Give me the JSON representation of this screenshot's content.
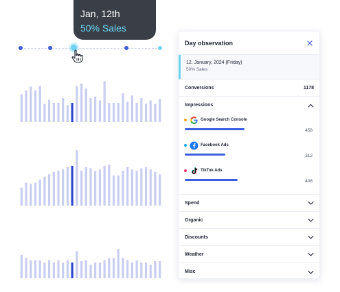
{
  "tooltip": {
    "date": "Jan, 12th",
    "subtitle": "50% Sales"
  },
  "colors": {
    "accent": "#3b5ee0",
    "bar": "#c9cdef",
    "bar_active": "#2f46c9",
    "highlight": "#6fd3f3",
    "tooltip_bg": "#3a3f47"
  },
  "charts": [
    {
      "values": [
        0.58,
        0.66,
        0.74,
        0.66,
        0.75,
        0.38,
        0.46,
        0.4,
        0.4,
        0.5,
        0.35,
        0.4,
        0.75,
        0.8,
        0.7,
        0.5,
        0.53,
        0.45,
        0.85,
        0.4,
        0.4,
        0.4,
        0.6,
        0.42,
        0.55,
        0.4,
        0.5,
        0.38,
        0.45,
        0.38,
        0.48
      ],
      "active_index": 11
    },
    {
      "values": [
        0.3,
        0.38,
        0.36,
        0.38,
        0.43,
        0.48,
        0.52,
        0.56,
        0.58,
        0.6,
        0.64,
        0.66,
        0.92,
        0.58,
        0.64,
        0.62,
        0.58,
        0.6,
        0.66,
        0.68,
        0.5,
        0.5,
        0.58,
        0.64,
        0.6,
        0.58,
        0.62,
        0.64,
        0.6,
        0.56,
        0.52
      ],
      "active_index": 11
    },
    {
      "values": [
        0.52,
        0.45,
        0.4,
        0.4,
        0.4,
        0.35,
        0.4,
        0.35,
        0.4,
        0.35,
        0.4,
        0.35,
        0.6,
        0.38,
        0.4,
        0.3,
        0.35,
        0.35,
        0.4,
        0.45,
        0.45,
        0.65,
        0.45,
        0.4,
        0.35,
        0.4,
        0.35,
        0.35,
        0.3,
        0.38,
        0.38
      ],
      "active_index": 11
    }
  ],
  "panel": {
    "title": "Day observation",
    "date_line": "12. January, 2024 (Friday)",
    "date_sub": "50% Sales",
    "conversions": {
      "label": "Conversions",
      "value": "1178"
    },
    "impressions": {
      "label": "Impressions",
      "items": [
        {
          "name": "Google Search Console",
          "value": "458",
          "bar_fraction": 0.92,
          "dot": "#f5a623",
          "icon": "google-icon"
        },
        {
          "name": "Facebook Ads",
          "value": "312",
          "bar_fraction": 0.62,
          "dot": "#1aa3f2",
          "icon": "facebook-icon"
        },
        {
          "name": "TikTok Ads",
          "value": "408",
          "bar_fraction": 0.81,
          "dot": "#e8366b",
          "icon": "tiktok-icon"
        }
      ]
    },
    "sections": [
      "Spend",
      "Organic",
      "Discounts",
      "Weather",
      "Misc"
    ]
  }
}
